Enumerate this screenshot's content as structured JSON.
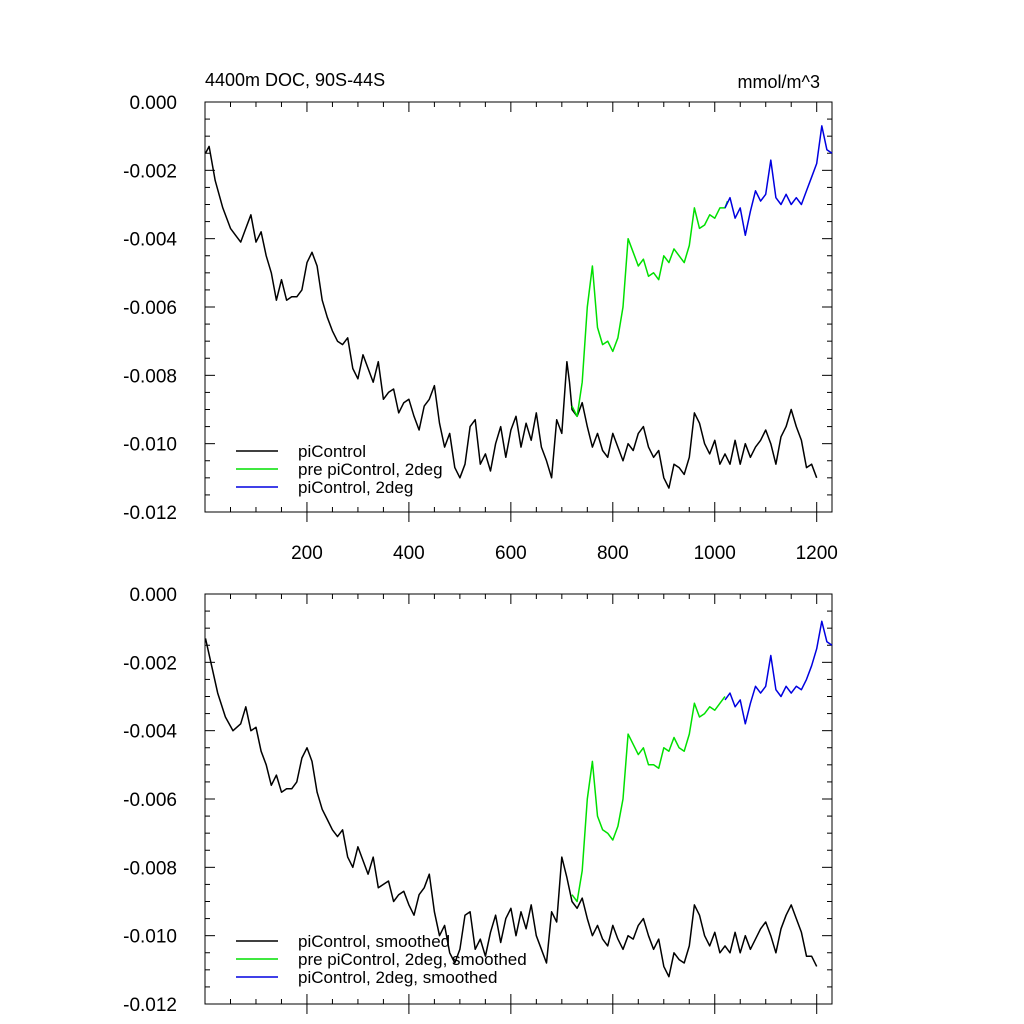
{
  "chart_data": [
    {
      "type": "line",
      "title": "4400m DOC, 90S-44S",
      "units": "mmol/m^3",
      "xlabel": "",
      "ylabel": "",
      "xlim": [
        0,
        1230
      ],
      "ylim": [
        -0.012,
        0.0
      ],
      "xticks": [
        200,
        400,
        600,
        800,
        1000,
        1200
      ],
      "yticks": [
        0.0,
        -0.002,
        -0.004,
        -0.006,
        -0.008,
        -0.01,
        -0.012
      ],
      "ytick_labels": [
        "0.000",
        "-0.002",
        "-0.004",
        "-0.006",
        "-0.008",
        "-0.010",
        "-0.012"
      ],
      "xtick_labels": [
        "200",
        "400",
        "600",
        "800",
        "1000",
        "1200"
      ],
      "legend_position": "bottom-left",
      "grid": false,
      "series": [
        {
          "name": "piControl",
          "color": "#000000",
          "x": [
            1,
            8,
            20,
            35,
            50,
            60,
            70,
            80,
            90,
            100,
            110,
            120,
            130,
            140,
            150,
            160,
            170,
            180,
            190,
            200,
            210,
            220,
            230,
            240,
            250,
            260,
            270,
            280,
            290,
            300,
            310,
            320,
            330,
            340,
            350,
            360,
            370,
            380,
            390,
            400,
            410,
            420,
            430,
            440,
            450,
            460,
            470,
            480,
            490,
            500,
            510,
            520,
            530,
            540,
            550,
            560,
            570,
            580,
            590,
            600,
            610,
            620,
            630,
            640,
            650,
            660,
            670,
            680,
            690,
            700,
            710,
            715,
            720,
            730,
            740,
            750,
            760,
            770,
            780,
            790,
            800,
            810,
            820,
            830,
            840,
            850,
            860,
            870,
            880,
            890,
            900,
            910,
            920,
            930,
            940,
            950,
            960,
            970,
            980,
            990,
            1000,
            1010,
            1020,
            1030,
            1040,
            1050,
            1060,
            1070,
            1080,
            1090,
            1100,
            1110,
            1120,
            1130,
            1140,
            1150,
            1160,
            1170,
            1180,
            1190,
            1200
          ],
          "y": [
            -0.0015,
            -0.0013,
            -0.0023,
            -0.0031,
            -0.0037,
            -0.0039,
            -0.0041,
            -0.0037,
            -0.0033,
            -0.0041,
            -0.0038,
            -0.0045,
            -0.005,
            -0.0058,
            -0.0052,
            -0.0058,
            -0.0057,
            -0.0057,
            -0.0055,
            -0.0047,
            -0.0044,
            -0.0048,
            -0.0058,
            -0.0063,
            -0.0067,
            -0.007,
            -0.0071,
            -0.0069,
            -0.0078,
            -0.0081,
            -0.0074,
            -0.0078,
            -0.0082,
            -0.0076,
            -0.0087,
            -0.0085,
            -0.0084,
            -0.0091,
            -0.0088,
            -0.0087,
            -0.0092,
            -0.0096,
            -0.0089,
            -0.0087,
            -0.0083,
            -0.0094,
            -0.0101,
            -0.0097,
            -0.0107,
            -0.011,
            -0.0106,
            -0.0095,
            -0.0093,
            -0.0106,
            -0.0103,
            -0.0108,
            -0.01,
            -0.0095,
            -0.0104,
            -0.0096,
            -0.0092,
            -0.0101,
            -0.0094,
            -0.0099,
            -0.0091,
            -0.0101,
            -0.0105,
            -0.011,
            -0.0093,
            -0.0097,
            -0.0076,
            -0.0082,
            -0.009,
            -0.0092,
            -0.0088,
            -0.0095,
            -0.0101,
            -0.0097,
            -0.0102,
            -0.0104,
            -0.0097,
            -0.0101,
            -0.0105,
            -0.01,
            -0.0102,
            -0.0097,
            -0.0095,
            -0.0101,
            -0.0104,
            -0.0102,
            -0.011,
            -0.0113,
            -0.0106,
            -0.0107,
            -0.0109,
            -0.0104,
            -0.0091,
            -0.0094,
            -0.01,
            -0.0103,
            -0.0099,
            -0.0106,
            -0.0103,
            -0.0106,
            -0.0099,
            -0.0106,
            -0.01,
            -0.0104,
            -0.0101,
            -0.0099,
            -0.0096,
            -0.01,
            -0.0106,
            -0.0098,
            -0.0095,
            -0.009,
            -0.0095,
            -0.0099,
            -0.0107,
            -0.0106,
            -0.011
          ]
        },
        {
          "name": "pre piControl, 2deg",
          "color": "#00e000",
          "x": [
            720,
            730,
            740,
            750,
            760,
            770,
            780,
            790,
            800,
            810,
            820,
            830,
            840,
            850,
            860,
            870,
            880,
            890,
            900,
            910,
            920,
            930,
            940,
            950,
            960,
            970,
            980,
            990,
            1000,
            1010,
            1020,
            1025
          ],
          "y": [
            -0.0089,
            -0.0092,
            -0.0082,
            -0.006,
            -0.0048,
            -0.0066,
            -0.0071,
            -0.007,
            -0.0073,
            -0.0069,
            -0.006,
            -0.004,
            -0.0044,
            -0.0048,
            -0.0046,
            -0.0051,
            -0.005,
            -0.0052,
            -0.0045,
            -0.0047,
            -0.0043,
            -0.0045,
            -0.0047,
            -0.0042,
            -0.0031,
            -0.0037,
            -0.0036,
            -0.0033,
            -0.0034,
            -0.0031,
            -0.0031,
            -0.0029
          ]
        },
        {
          "name": "piControl, 2deg",
          "color": "#0000e0",
          "x": [
            1020,
            1030,
            1040,
            1050,
            1060,
            1070,
            1080,
            1090,
            1100,
            1110,
            1120,
            1130,
            1140,
            1150,
            1160,
            1170,
            1180,
            1190,
            1200,
            1210,
            1220,
            1230
          ],
          "y": [
            -0.0031,
            -0.0028,
            -0.0034,
            -0.0031,
            -0.0039,
            -0.0032,
            -0.0026,
            -0.0029,
            -0.0027,
            -0.0017,
            -0.0028,
            -0.003,
            -0.0027,
            -0.003,
            -0.0028,
            -0.003,
            -0.0026,
            -0.0022,
            -0.0018,
            -0.0007,
            -0.0014,
            -0.0015
          ]
        }
      ]
    },
    {
      "type": "line",
      "title": "",
      "xlabel": "",
      "ylabel": "",
      "xlim": [
        0,
        1230
      ],
      "ylim": [
        -0.012,
        0.0
      ],
      "yticks": [
        0.0,
        -0.002,
        -0.004,
        -0.006,
        -0.008,
        -0.01,
        -0.012
      ],
      "ytick_labels": [
        "0.000",
        "-0.002",
        "-0.004",
        "-0.006",
        "-0.008",
        "-0.010",
        "-0.012"
      ],
      "legend_position": "bottom-left",
      "grid": false,
      "series": [
        {
          "name": "piControl, smoothed",
          "color": "#000000",
          "x": [
            1,
            10,
            25,
            40,
            55,
            70,
            80,
            90,
            100,
            110,
            120,
            130,
            140,
            150,
            160,
            170,
            180,
            190,
            200,
            210,
            220,
            230,
            240,
            250,
            260,
            270,
            280,
            290,
            300,
            310,
            320,
            330,
            340,
            350,
            360,
            370,
            380,
            390,
            400,
            410,
            420,
            430,
            440,
            450,
            460,
            470,
            480,
            490,
            500,
            510,
            520,
            530,
            540,
            550,
            560,
            570,
            580,
            590,
            600,
            610,
            620,
            630,
            640,
            650,
            660,
            670,
            680,
            690,
            700,
            710,
            720,
            730,
            740,
            750,
            760,
            770,
            780,
            790,
            800,
            810,
            820,
            830,
            840,
            850,
            860,
            870,
            880,
            890,
            900,
            910,
            920,
            930,
            940,
            950,
            960,
            970,
            980,
            990,
            1000,
            1010,
            1020,
            1030,
            1040,
            1050,
            1060,
            1070,
            1080,
            1090,
            1100,
            1110,
            1120,
            1130,
            1140,
            1150,
            1160,
            1170,
            1180,
            1190,
            1200
          ],
          "y": [
            -0.0013,
            -0.0019,
            -0.0029,
            -0.0036,
            -0.004,
            -0.0038,
            -0.0033,
            -0.004,
            -0.0039,
            -0.0046,
            -0.005,
            -0.0056,
            -0.0053,
            -0.0058,
            -0.0057,
            -0.0057,
            -0.0055,
            -0.0048,
            -0.0045,
            -0.0049,
            -0.0058,
            -0.0063,
            -0.0066,
            -0.0069,
            -0.0071,
            -0.0069,
            -0.0077,
            -0.008,
            -0.0074,
            -0.0078,
            -0.0082,
            -0.0077,
            -0.0086,
            -0.0085,
            -0.0084,
            -0.009,
            -0.0088,
            -0.0087,
            -0.0091,
            -0.0094,
            -0.0088,
            -0.0086,
            -0.0082,
            -0.0093,
            -0.01,
            -0.0097,
            -0.0105,
            -0.0108,
            -0.0104,
            -0.0094,
            -0.0093,
            -0.0104,
            -0.0101,
            -0.0106,
            -0.0099,
            -0.0094,
            -0.0102,
            -0.0095,
            -0.0092,
            -0.01,
            -0.0093,
            -0.0098,
            -0.0091,
            -0.01,
            -0.0104,
            -0.0108,
            -0.0093,
            -0.0096,
            -0.0077,
            -0.0083,
            -0.009,
            -0.0092,
            -0.0089,
            -0.0095,
            -0.01,
            -0.0097,
            -0.0101,
            -0.0103,
            -0.0097,
            -0.0101,
            -0.0104,
            -0.01,
            -0.0101,
            -0.0097,
            -0.0095,
            -0.01,
            -0.0104,
            -0.0101,
            -0.0109,
            -0.0112,
            -0.0105,
            -0.0107,
            -0.0108,
            -0.0103,
            -0.0091,
            -0.0094,
            -0.01,
            -0.0103,
            -0.0099,
            -0.0105,
            -0.0103,
            -0.0105,
            -0.0099,
            -0.0105,
            -0.01,
            -0.0104,
            -0.0101,
            -0.0098,
            -0.0096,
            -0.01,
            -0.0105,
            -0.0098,
            -0.0094,
            -0.0091,
            -0.0095,
            -0.0099,
            -0.0106,
            -0.0106,
            -0.0109
          ]
        },
        {
          "name": "pre piControl, 2deg, smoothed",
          "color": "#00e000",
          "x": [
            720,
            730,
            740,
            750,
            760,
            770,
            780,
            790,
            800,
            810,
            820,
            830,
            840,
            850,
            860,
            870,
            880,
            890,
            900,
            910,
            920,
            930,
            940,
            950,
            960,
            970,
            980,
            990,
            1000,
            1010,
            1020
          ],
          "y": [
            -0.0088,
            -0.009,
            -0.0081,
            -0.006,
            -0.0049,
            -0.0065,
            -0.0069,
            -0.007,
            -0.0072,
            -0.0068,
            -0.006,
            -0.0041,
            -0.0044,
            -0.0047,
            -0.0045,
            -0.005,
            -0.005,
            -0.0051,
            -0.0045,
            -0.0046,
            -0.0042,
            -0.0045,
            -0.0046,
            -0.0041,
            -0.0032,
            -0.0036,
            -0.0035,
            -0.0033,
            -0.0034,
            -0.0032,
            -0.003
          ]
        },
        {
          "name": "piControl, 2deg, smoothed",
          "color": "#0000e0",
          "x": [
            1020,
            1030,
            1040,
            1050,
            1060,
            1070,
            1080,
            1090,
            1100,
            1110,
            1120,
            1130,
            1140,
            1150,
            1160,
            1170,
            1180,
            1190,
            1200,
            1210,
            1220,
            1230
          ],
          "y": [
            -0.0031,
            -0.0029,
            -0.0033,
            -0.0031,
            -0.0038,
            -0.0032,
            -0.0027,
            -0.0029,
            -0.0027,
            -0.0018,
            -0.0028,
            -0.003,
            -0.0027,
            -0.0029,
            -0.0027,
            -0.0028,
            -0.0025,
            -0.0021,
            -0.0016,
            -0.0008,
            -0.0014,
            -0.0015
          ]
        }
      ]
    }
  ]
}
